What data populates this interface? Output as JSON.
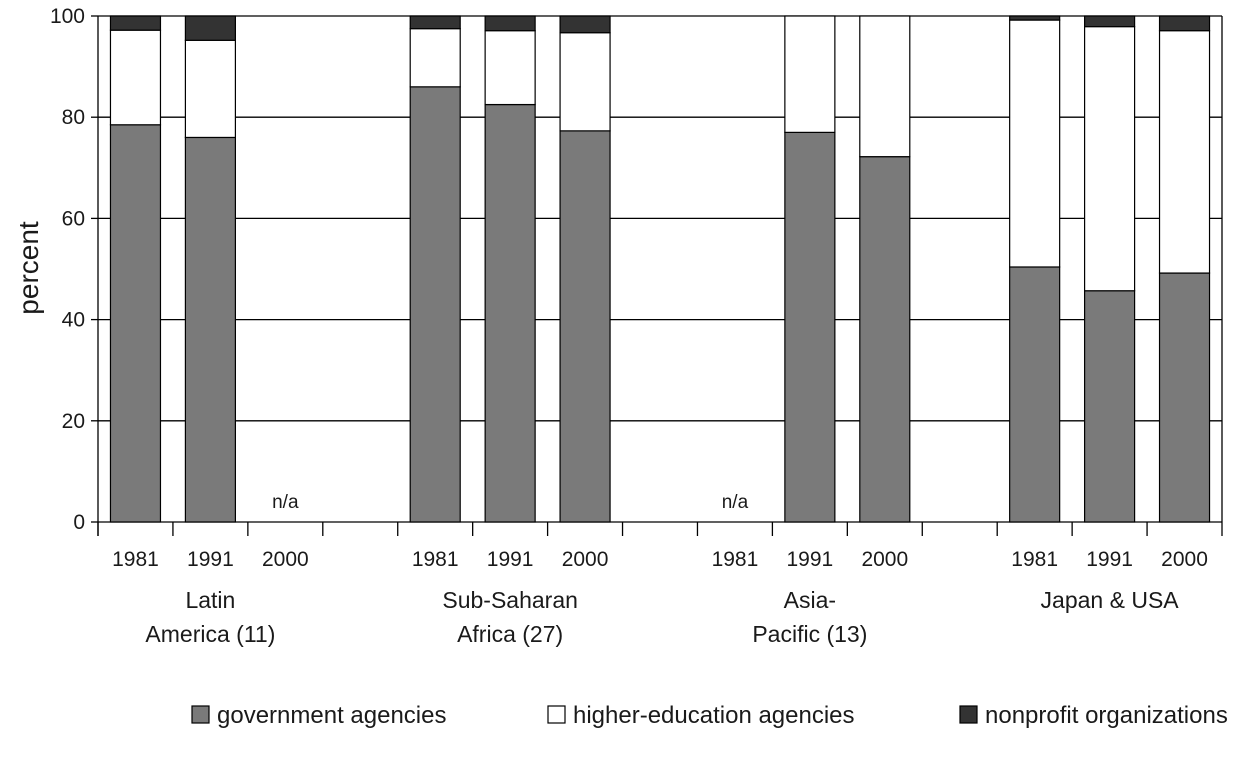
{
  "chart_data": {
    "type": "bar",
    "stacked": true,
    "ylabel": "percent",
    "ylim": [
      0,
      100
    ],
    "yticks": [
      "0",
      "20",
      "40",
      "60",
      "80",
      "100"
    ],
    "grid": true,
    "legend_position": "bottom",
    "groups": [
      {
        "name": "Latin America (11)",
        "label_lines": [
          "Latin",
          "America (11)"
        ],
        "years": [
          "1981",
          "1991",
          "2000"
        ]
      },
      {
        "name": "Sub-Saharan Africa (27)",
        "label_lines": [
          "Sub-Saharan",
          "Africa (27)"
        ],
        "years": [
          "1981",
          "1991",
          "2000"
        ]
      },
      {
        "name": "Asia-Pacific (13)",
        "label_lines": [
          "Asia-",
          "Pacific (13)"
        ],
        "years": [
          "1981",
          "1991",
          "2000"
        ]
      },
      {
        "name": "Japan & USA",
        "label_lines": [
          "Japan & USA"
        ],
        "years": [
          "1981",
          "1991",
          "2000"
        ]
      }
    ],
    "series": [
      {
        "name": "government agencies",
        "color": "#7a7a7a",
        "values": [
          78.5,
          76,
          null,
          86,
          82.5,
          77.3,
          null,
          77,
          72.2,
          50.4,
          45.7,
          49.2
        ]
      },
      {
        "name": "higher-education agencies",
        "color": "#ffffff",
        "values": [
          18.7,
          19.2,
          null,
          11.5,
          14.6,
          19.4,
          null,
          23,
          27.8,
          48.8,
          52.2,
          47.9
        ]
      },
      {
        "name": "nonprofit organizations",
        "color": "#333333",
        "values": [
          2.8,
          4.8,
          null,
          2.5,
          2.9,
          3.3,
          null,
          0,
          0,
          0.8,
          2.1,
          2.9
        ]
      }
    ],
    "missing_label": "n/a"
  }
}
